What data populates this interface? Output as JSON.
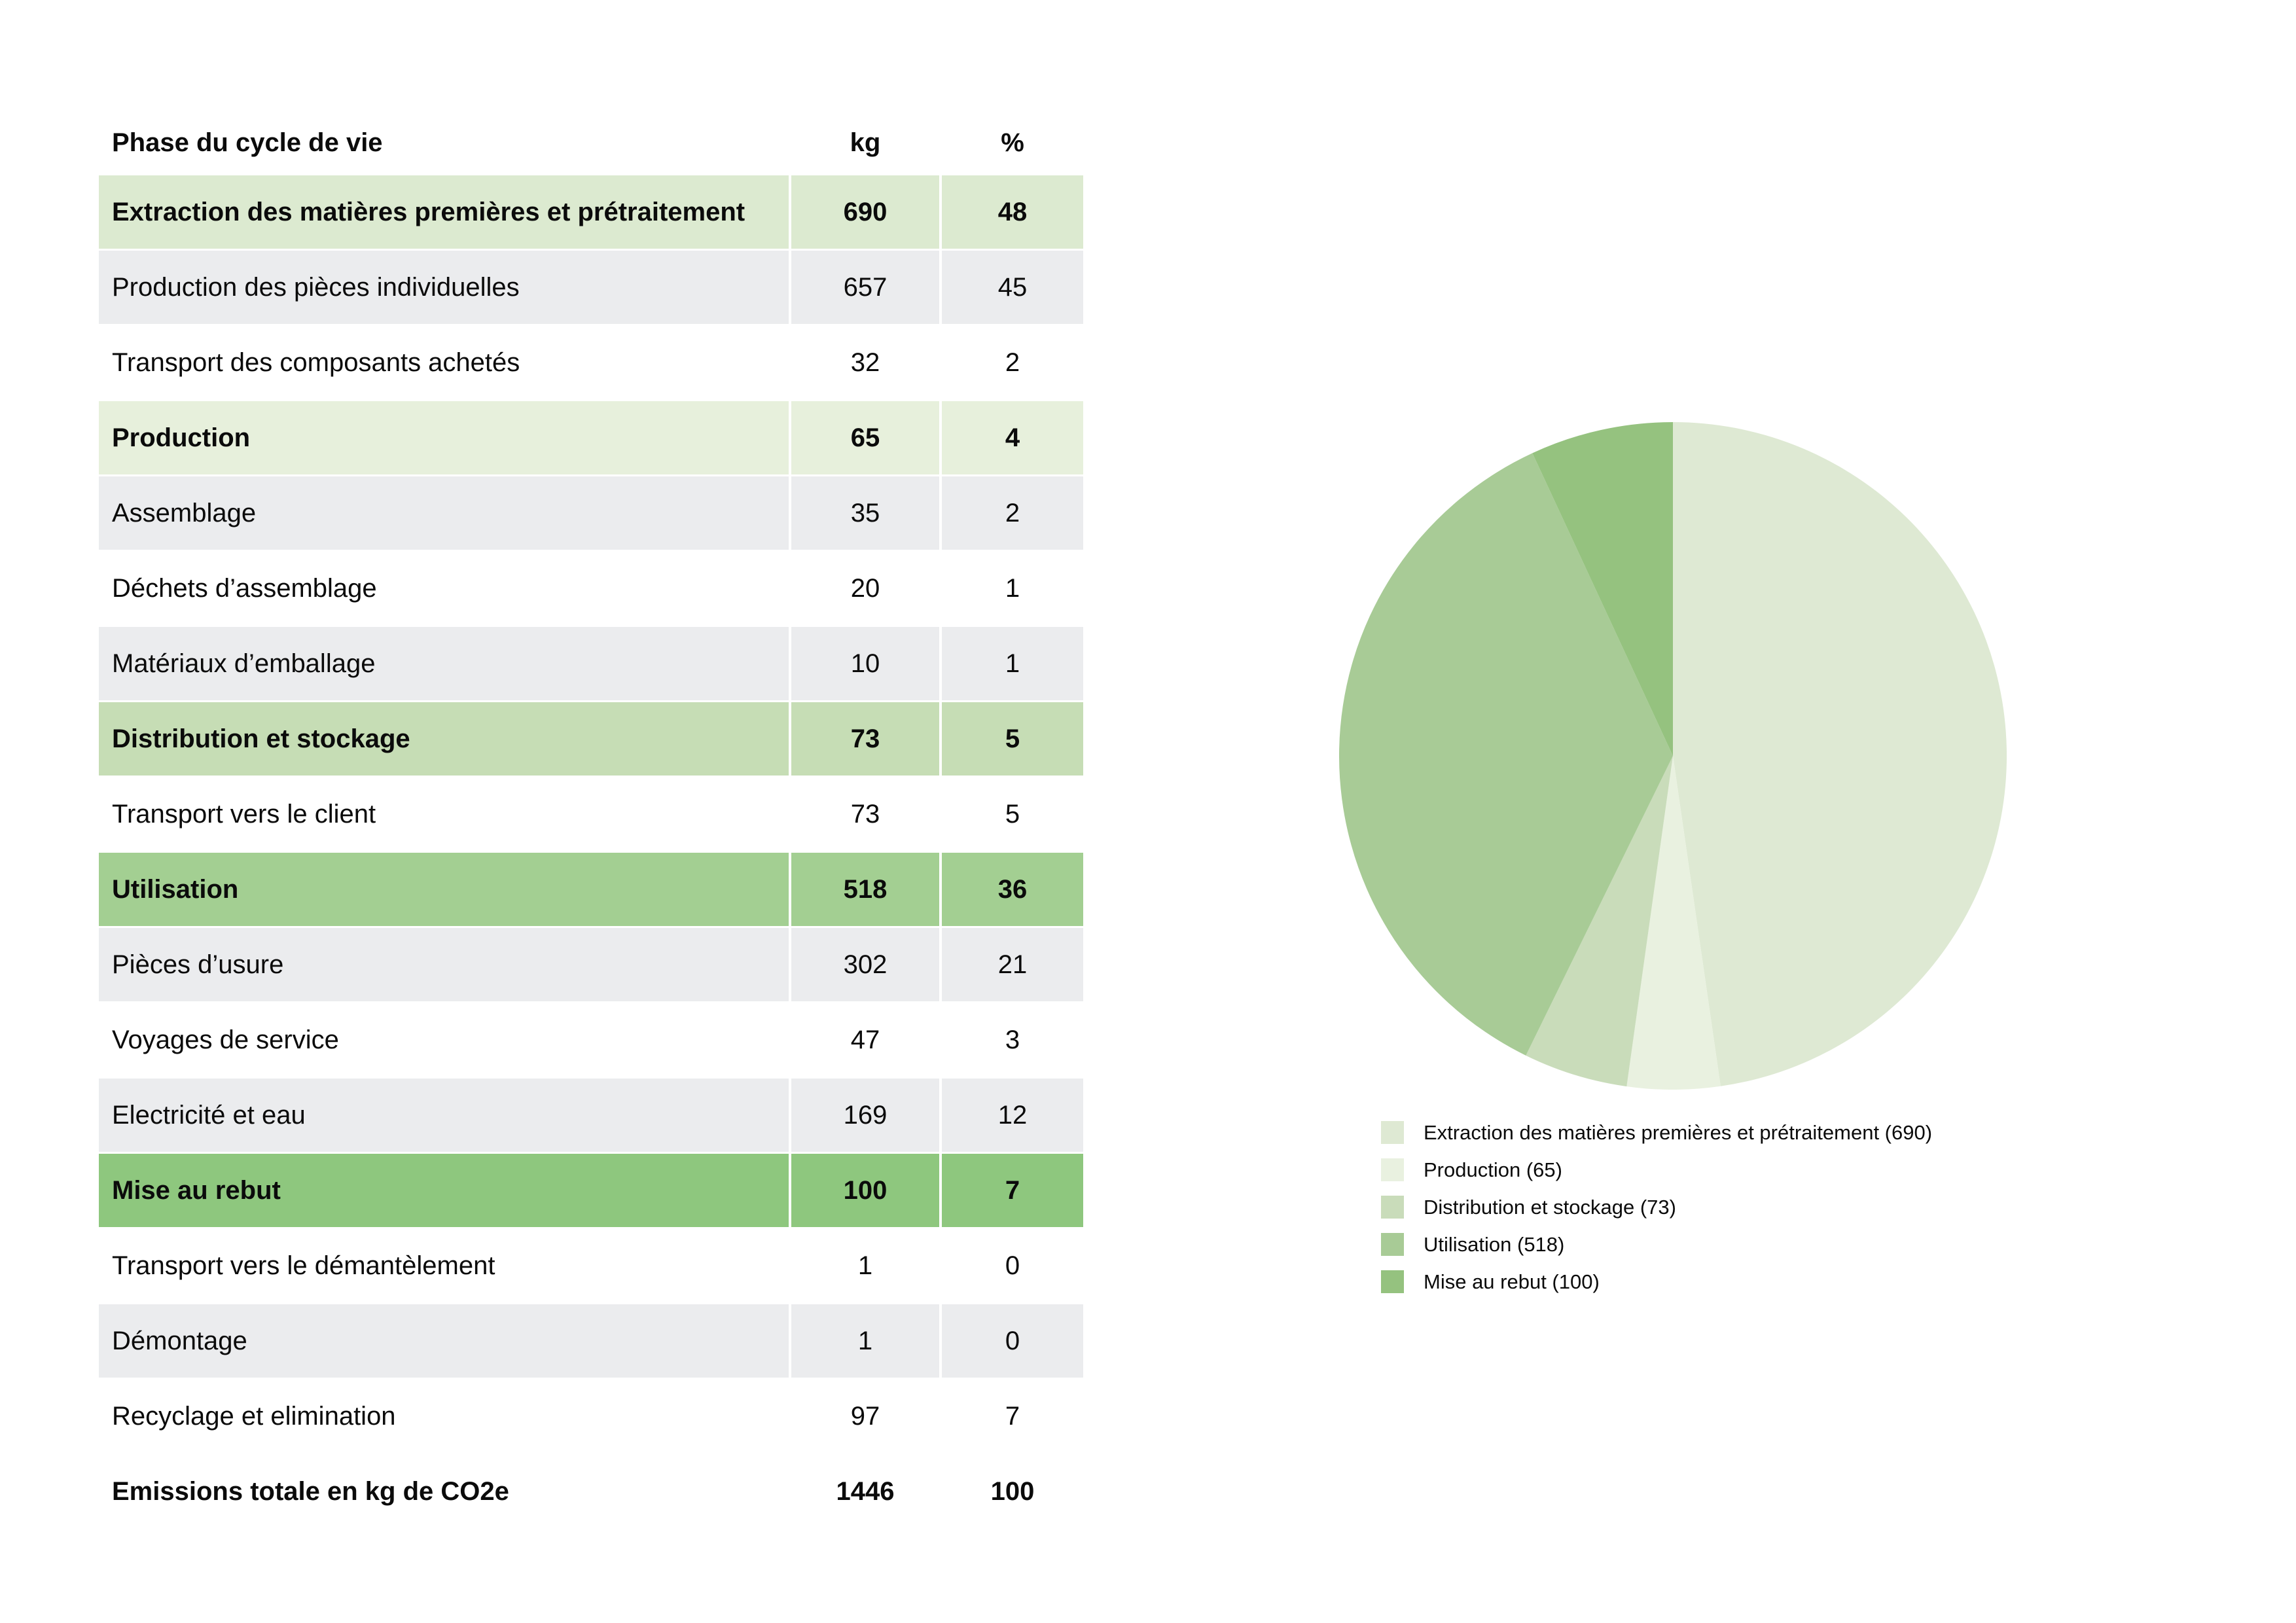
{
  "colors": {
    "page_background": "#ffffff",
    "text": "#0b0b0b",
    "tones": {
      "phase1": "#dcead0",
      "phase2": "#e7f0dc",
      "phase3": "#c6ddb5",
      "phase4": "#a3cf92",
      "phase5": "#8ec77e",
      "gray": "#ebecee",
      "white": "#ffffff"
    }
  },
  "table": {
    "headers": {
      "phase": "Phase du cycle de vie",
      "kg": "kg",
      "pct": "%"
    },
    "rows": [
      {
        "label": "Extraction des matières premières et prétraitement",
        "kg": "690",
        "pct": "48",
        "tone": "phase1",
        "bold": true
      },
      {
        "label": "Production des pièces individuelles",
        "kg": "657",
        "pct": "45",
        "tone": "gray",
        "bold": false
      },
      {
        "label": "Transport des composants achetés",
        "kg": "32",
        "pct": "2",
        "tone": "white",
        "bold": false
      },
      {
        "label": "Production",
        "kg": "65",
        "pct": "4",
        "tone": "phase2",
        "bold": true
      },
      {
        "label": "Assemblage",
        "kg": "35",
        "pct": "2",
        "tone": "gray",
        "bold": false
      },
      {
        "label": "Déchets d’assemblage",
        "kg": "20",
        "pct": "1",
        "tone": "white",
        "bold": false
      },
      {
        "label": "Matériaux d’emballage",
        "kg": "10",
        "pct": "1",
        "tone": "gray",
        "bold": false
      },
      {
        "label": "Distribution et stockage",
        "kg": "73",
        "pct": "5",
        "tone": "phase3",
        "bold": true
      },
      {
        "label": "Transport vers le client",
        "kg": "73",
        "pct": "5",
        "tone": "white",
        "bold": false
      },
      {
        "label": "Utilisation",
        "kg": "518",
        "pct": "36",
        "tone": "phase4",
        "bold": true
      },
      {
        "label": "Pièces d’usure",
        "kg": "302",
        "pct": "21",
        "tone": "gray",
        "bold": false
      },
      {
        "label": "Voyages de service",
        "kg": "47",
        "pct": "3",
        "tone": "white",
        "bold": false
      },
      {
        "label": "Electricité et eau",
        "kg": "169",
        "pct": "12",
        "tone": "gray",
        "bold": false
      },
      {
        "label": "Mise au rebut",
        "kg": "100",
        "pct": "7",
        "tone": "phase5",
        "bold": true
      },
      {
        "label": "Transport vers le démantèlement",
        "kg": "1",
        "pct": "0",
        "tone": "white",
        "bold": false
      },
      {
        "label": "Démontage",
        "kg": "1",
        "pct": "0",
        "tone": "gray",
        "bold": false
      },
      {
        "label": "Recyclage et elimination",
        "kg": "97",
        "pct": "7",
        "tone": "white",
        "bold": false
      }
    ],
    "total": {
      "label": "Emissions totale en kg de CO2e",
      "kg": "1446",
      "pct": "100"
    }
  },
  "chart_data": {
    "type": "pie",
    "title": "",
    "total": 1446,
    "start_angle_deg": 0,
    "direction": "clockwise-from-top",
    "legend_position": "bottom-left",
    "slices": [
      {
        "label": "Extraction des matières premières et prétraitement",
        "value": 690,
        "pct": 48,
        "color": "#dee9d3",
        "legend": "Extraction des matières premières et prétraitement (690)"
      },
      {
        "label": "Production",
        "value": 65,
        "pct": 4,
        "color": "#e9f1e0",
        "legend": "Production (65)"
      },
      {
        "label": "Distribution et stockage",
        "value": 73,
        "pct": 5,
        "color": "#c9dcba",
        "legend": "Distribution et stockage (73)"
      },
      {
        "label": "Utilisation",
        "value": 518,
        "pct": 36,
        "color": "#a8cb96",
        "legend": "Utilisation (518)"
      },
      {
        "label": "Mise au rebut",
        "value": 100,
        "pct": 7,
        "color": "#95c27f",
        "legend": "Mise au rebut (100)"
      }
    ]
  }
}
